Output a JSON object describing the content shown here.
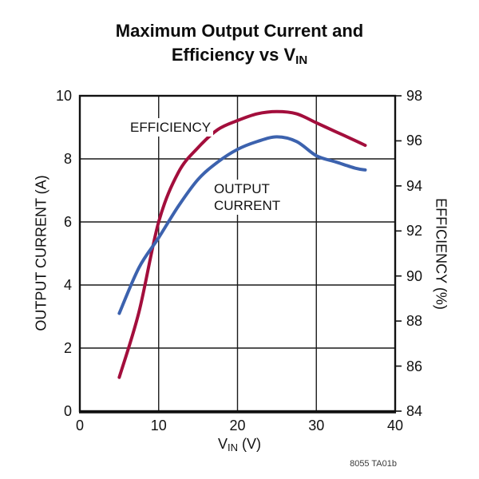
{
  "title": {
    "line1": "Maximum Output Current and",
    "line2_main": "Efficiency vs V",
    "line2_sub": "IN"
  },
  "note": "8055 TA01b",
  "labels": {
    "efficiency": "EFFICIENCY",
    "output_line1": "OUTPUT",
    "output_line2": "CURRENT"
  },
  "axis_titles": {
    "left": "OUTPUT CURRENT (A)",
    "right": "EFFICIENCY (%)",
    "bottom_v": "V",
    "bottom_sub": "IN",
    "bottom_unit": "(V)"
  },
  "chart_data": {
    "type": "line",
    "title": "Maximum Output Current and Efficiency vs VIN",
    "xlabel": "VIN (V)",
    "ylabel_left": "OUTPUT CURRENT (A)",
    "ylabel_right": "EFFICIENCY (%)",
    "xlim": [
      0,
      40
    ],
    "ylim_left": [
      0,
      10
    ],
    "ylim_right": [
      84,
      98
    ],
    "xticks": [
      0,
      10,
      20,
      30,
      40
    ],
    "yticks_left": [
      0,
      2,
      4,
      6,
      8,
      10
    ],
    "yticks_right": [
      84,
      86,
      88,
      90,
      92,
      94,
      96,
      98
    ],
    "grid_x": [
      10,
      20,
      30
    ],
    "grid_y_left": [
      2,
      4,
      6,
      8
    ],
    "grid": "on",
    "legend_position": "inline-labels",
    "x": [
      5,
      7.5,
      10,
      12.5,
      15,
      17.5,
      20,
      22.5,
      25,
      27.5,
      30,
      32.5,
      35,
      36.2
    ],
    "series": [
      {
        "name": "EFFICIENCY",
        "axis": "right",
        "color": "#A30E3C",
        "values": [
          85.5,
          88.4,
          92.4,
          94.6,
          95.7,
          96.5,
          96.9,
          97.2,
          97.3,
          97.2,
          96.8,
          96.4,
          96.0,
          95.8
        ]
      },
      {
        "name": "OUTPUT CURRENT",
        "axis": "left",
        "color": "#3C62AE",
        "values": [
          3.1,
          4.55,
          5.5,
          6.5,
          7.35,
          7.9,
          8.3,
          8.55,
          8.7,
          8.55,
          8.1,
          7.9,
          7.7,
          7.65
        ]
      }
    ],
    "frame_color": "#111111",
    "grid_color": "#1a1a1a"
  }
}
